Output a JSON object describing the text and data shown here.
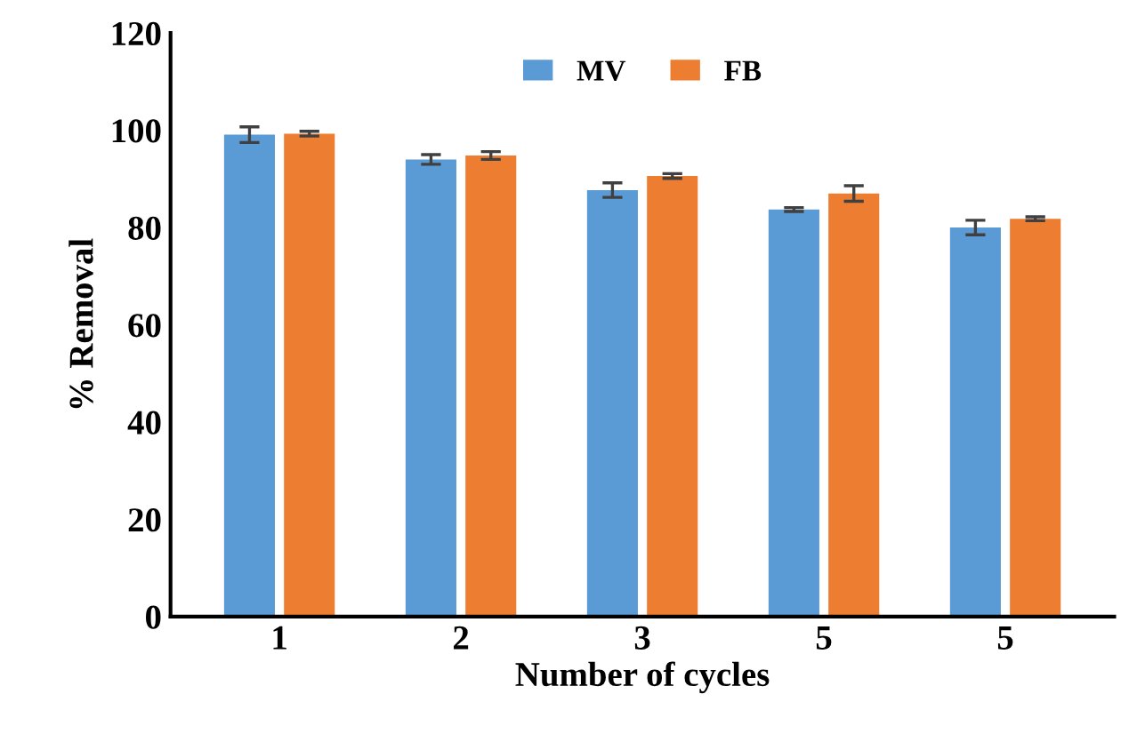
{
  "chart_data": {
    "type": "bar",
    "xlabel": "Number of cycles",
    "ylabel": "% Removal",
    "categories": [
      "1",
      "2",
      "3",
      "5",
      "5"
    ],
    "series": [
      {
        "name": "MV",
        "color": "#5b9bd5",
        "values": [
          99.1,
          94.0,
          87.7,
          83.7,
          80.0
        ],
        "errors": [
          1.6,
          1.0,
          1.5,
          0.4,
          1.5
        ]
      },
      {
        "name": "FB",
        "color": "#ed7d31",
        "values": [
          99.3,
          94.8,
          90.6,
          87.0,
          81.8
        ],
        "errors": [
          0.5,
          0.8,
          0.5,
          1.6,
          0.4
        ]
      }
    ],
    "ylim": [
      0,
      120
    ],
    "yticks": [
      0,
      20,
      40,
      60,
      80,
      100,
      120
    ],
    "grid": false,
    "legend": "top"
  }
}
